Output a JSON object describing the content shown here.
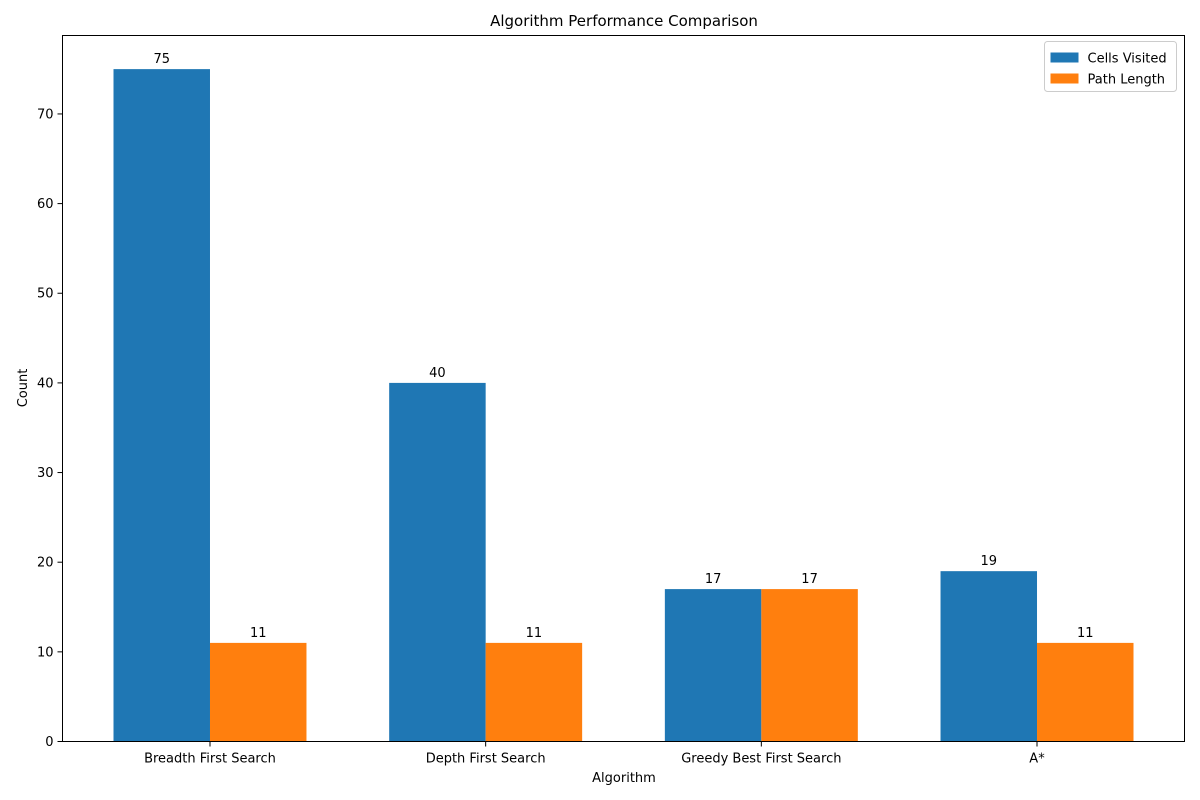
{
  "chart_data": {
    "type": "bar",
    "title": "Algorithm Performance Comparison",
    "xlabel": "Algorithm",
    "ylabel": "Count",
    "categories": [
      "Breadth First Search",
      "Depth First Search",
      "Greedy Best First Search",
      "A*"
    ],
    "series": [
      {
        "name": "Cells Visited",
        "values": [
          75,
          40,
          17,
          19
        ],
        "color": "#1f77b4"
      },
      {
        "name": "Path Length",
        "values": [
          11,
          11,
          17,
          11
        ],
        "color": "#ff7f0e"
      }
    ],
    "ylim": [
      0,
      78.75
    ],
    "yticks": [
      0,
      10,
      20,
      30,
      40,
      50,
      60,
      70
    ],
    "grid": false,
    "legend_position": "top-right",
    "data_labels": true
  }
}
